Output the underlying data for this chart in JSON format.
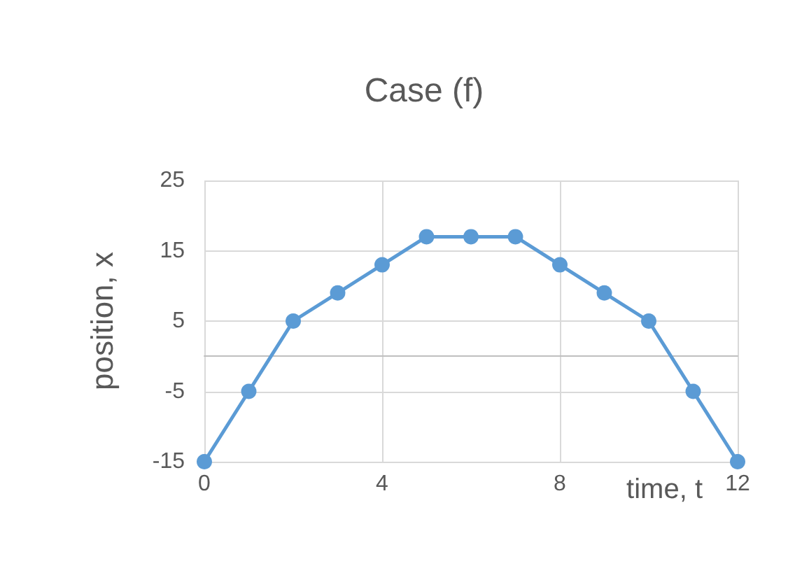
{
  "chart_data": {
    "type": "line",
    "title": "Case (f)",
    "xlabel": "time, t",
    "ylabel": "position, x",
    "x": [
      0,
      1,
      2,
      3,
      4,
      5,
      6,
      7,
      8,
      9,
      10,
      11,
      12
    ],
    "series": [
      {
        "color": "#5b9bd5",
        "values": [
          -15,
          -5,
          5,
          9,
          13,
          17,
          17,
          17,
          13,
          9,
          5,
          -5,
          -15
        ]
      }
    ],
    "xlim": [
      0,
      12
    ],
    "xticks": [
      0,
      4,
      8,
      12
    ],
    "ylim": [
      -15,
      25
    ],
    "yticks": [
      -15,
      -5,
      5,
      15,
      25
    ],
    "grid": true,
    "marker": "circle",
    "line_style": "solid"
  }
}
